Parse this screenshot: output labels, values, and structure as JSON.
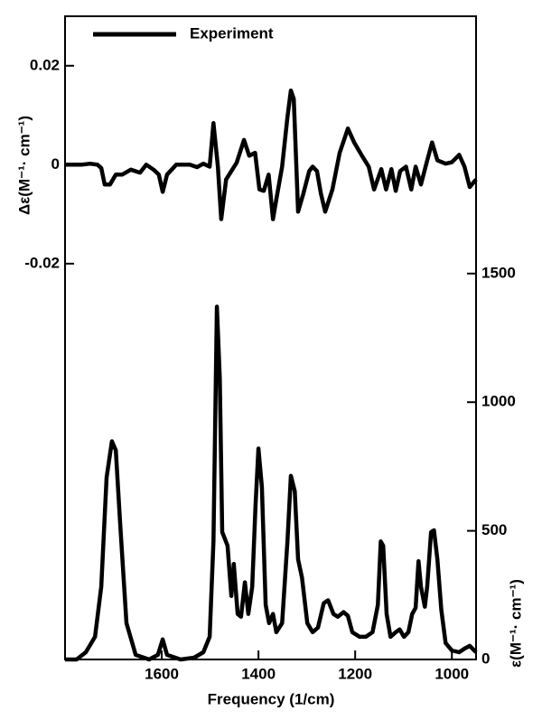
{
  "chart_data": {
    "type": "line",
    "xlabel": "Frequency (1/cm)",
    "ylabel": "Δε(M⁻¹· cm⁻¹)",
    "y2label": "ε(M⁻¹· cm⁻¹)",
    "xlim": [
      1800,
      950
    ],
    "xticks": [
      1600,
      1400,
      1200,
      1000
    ],
    "ylim": [
      -0.1,
      0.03
    ],
    "yticks": [
      0.02,
      0,
      -0.02
    ],
    "y2lim": [
      0,
      2500
    ],
    "y2ticks": [
      0,
      500,
      1000,
      1500
    ],
    "legend": "upper left",
    "series": [
      {
        "name": "Experiment",
        "color": "#000000",
        "x": [
          1800,
          1766,
          1748,
          1733,
          1725,
          1718,
          1707,
          1695,
          1682,
          1664,
          1645,
          1632,
          1617,
          1606,
          1598,
          1589,
          1570,
          1542,
          1527,
          1514,
          1501,
          1493,
          1484,
          1477,
          1467,
          1456,
          1445,
          1430,
          1419,
          1407,
          1398,
          1389,
          1379,
          1370,
          1363,
          1351,
          1340,
          1333,
          1327,
          1318,
          1307,
          1295,
          1288,
          1279,
          1271,
          1262,
          1247,
          1232,
          1215,
          1202,
          1187,
          1172,
          1161,
          1146,
          1136,
          1125,
          1116,
          1107,
          1095,
          1084,
          1075,
          1064,
          1052,
          1041,
          1030,
          1013,
          1000,
          985,
          974,
          963,
          950
        ],
        "values": [
          0,
          0,
          0.0002,
          0,
          -0.0007,
          -0.004,
          -0.004,
          -0.002,
          -0.002,
          -0.001,
          -0.0016,
          0,
          -0.001,
          -0.002,
          -0.0055,
          -0.002,
          0,
          0,
          -0.0005,
          0.0002,
          -0.0004,
          0.0084,
          -0.0004,
          -0.011,
          -0.003,
          -0.0013,
          0.0004,
          0.005,
          0.0018,
          0.0024,
          -0.005,
          -0.0053,
          -0.002,
          -0.011,
          -0.007,
          -0.0004,
          0.0096,
          0.015,
          0.0133,
          -0.0095,
          -0.0058,
          -0.0013,
          -0.0004,
          -0.0013,
          -0.0058,
          -0.0095,
          -0.005,
          0.0024,
          0.0073,
          0.0045,
          0.002,
          -0.0004,
          -0.005,
          -0.0009,
          -0.005,
          -0.0009,
          -0.0053,
          -0.0013,
          -0.0004,
          -0.005,
          -0.0004,
          -0.004,
          0.0005,
          0.0045,
          0.0009,
          0.0002,
          0.0005,
          0.002,
          -0.0004,
          -0.0045,
          -0.003
        ]
      },
      {
        "color": "#000000",
        "axis": "y2",
        "x": [
          1800,
          1776,
          1757,
          1738,
          1725,
          1714,
          1703,
          1695,
          1686,
          1673,
          1654,
          1626,
          1608,
          1598,
          1589,
          1561,
          1533,
          1514,
          1501,
          1493,
          1486,
          1480,
          1475,
          1464,
          1456,
          1451,
          1443,
          1436,
          1428,
          1421,
          1413,
          1406,
          1400,
          1393,
          1385,
          1378,
          1370,
          1363,
          1351,
          1340,
          1333,
          1325,
          1318,
          1310,
          1299,
          1288,
          1277,
          1265,
          1256,
          1245,
          1236,
          1224,
          1215,
          1206,
          1191,
          1178,
          1164,
          1153,
          1147,
          1142,
          1135,
          1127,
          1116,
          1108,
          1099,
          1090,
          1082,
          1075,
          1069,
          1064,
          1056,
          1051,
          1043,
          1037,
          1030,
          1022,
          1013,
          1000,
          985,
          974,
          963,
          950
        ],
        "values": [
          0,
          0,
          28,
          88,
          283,
          707,
          848,
          813,
          530,
          141,
          18,
          0,
          18,
          78,
          18,
          0,
          7,
          28,
          88,
          459,
          1371,
          1095,
          495,
          442,
          247,
          371,
          177,
          166,
          300,
          177,
          283,
          601,
          820,
          671,
          212,
          141,
          177,
          106,
          141,
          459,
          714,
          654,
          389,
          318,
          141,
          106,
          124,
          219,
          230,
          177,
          166,
          184,
          170,
          106,
          88,
          88,
          106,
          212,
          459,
          442,
          177,
          88,
          106,
          117,
          88,
          106,
          177,
          201,
          382,
          283,
          205,
          283,
          495,
          502,
          389,
          194,
          64,
          35,
          28,
          42,
          53,
          28
        ]
      }
    ]
  }
}
